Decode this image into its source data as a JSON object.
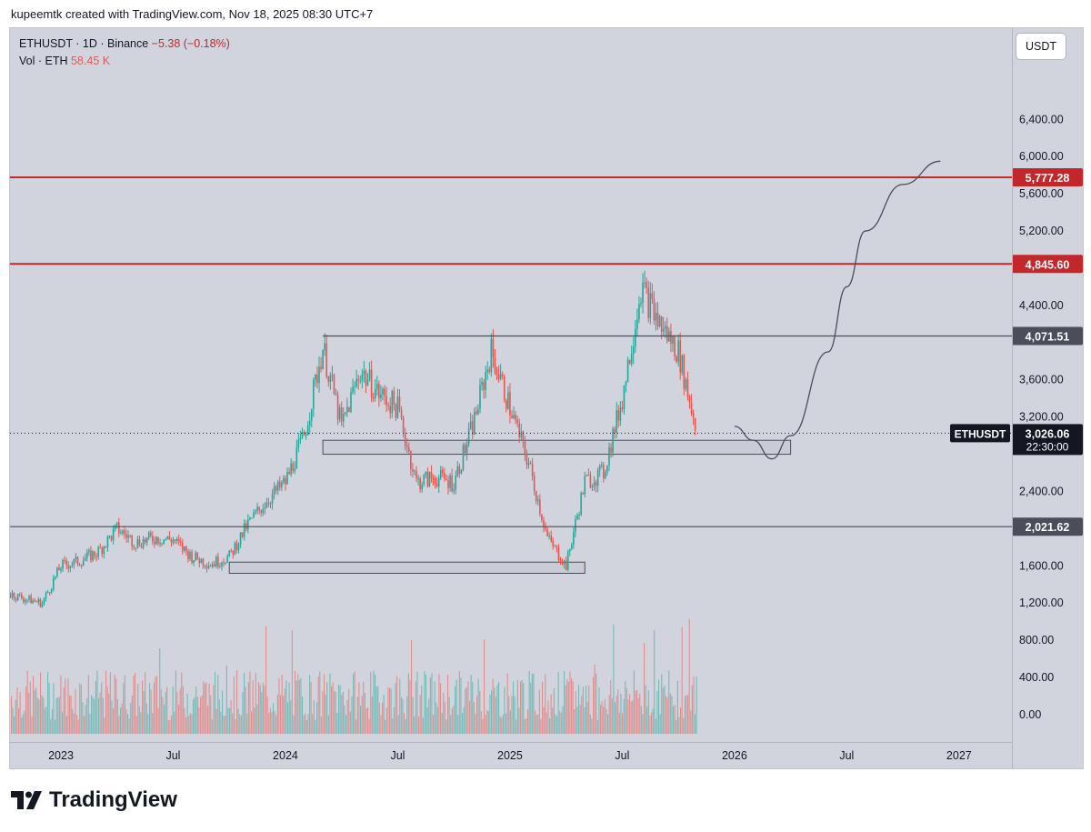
{
  "attribution": "kupeemtk created with TradingView.com, Nov 18, 2025 08:30 UTC+7",
  "legend": {
    "symbol_line": "ETHUSDT · 1D · Binance",
    "change": "−5.38 (−0.18%)",
    "vol_label": "Vol · ETH",
    "vol_value": "58.45 K"
  },
  "currency_button": "USDT",
  "brand": "TradingView",
  "colors": {
    "up": "#26a69a",
    "down": "#ef5350",
    "resistance": "#c2282b",
    "level_gray": "#4a4e5a",
    "zone_fill": "#c9ccd4",
    "background": "#d1d4dc"
  },
  "chart_data": {
    "type": "candlestick",
    "symbol": "ETHUSDT",
    "interval": "1D",
    "exchange": "Binance",
    "current_price": 3026.06,
    "current_price_label": "3,026.06",
    "countdown": "22:30:00",
    "price_axis_ticks": [
      "6,400.00",
      "6,000.00",
      "5,600.00",
      "5,200.00",
      "4,400.00",
      "3,600.00",
      "3,200.00",
      "2,400.00",
      "1,600.00",
      "1,200.00",
      "800.00",
      "400.00",
      "0.00"
    ],
    "time_axis_ticks": [
      "2023",
      "Jul",
      "2024",
      "Jul",
      "2025",
      "Jul",
      "2026",
      "Jul",
      "2027"
    ],
    "horizontal_levels": [
      {
        "price": 5777.28,
        "label": "5,777.28",
        "style": "resistance"
      },
      {
        "price": 4845.6,
        "label": "4,845.60",
        "style": "resistance"
      },
      {
        "price": 4071.51,
        "label": "4,071.51",
        "style": "level"
      },
      {
        "price": 2021.62,
        "label": "2,021.62",
        "style": "level"
      }
    ],
    "zones": [
      {
        "from": "2024-03",
        "to": "2026-04",
        "low": 2800,
        "high": 2950
      },
      {
        "from": "2023-10",
        "to": "2025-05",
        "low": 1520,
        "high": 1640
      }
    ],
    "price_path": [
      [
        "2022-10",
        1320
      ],
      [
        "2022-11",
        1250
      ],
      [
        "2022-12",
        1200
      ],
      [
        "2023-01",
        1600
      ],
      [
        "2023-02",
        1650
      ],
      [
        "2023-03",
        1750
      ],
      [
        "2023-04",
        2000
      ],
      [
        "2023-05",
        1850
      ],
      [
        "2023-06",
        1900
      ],
      [
        "2023-07",
        1880
      ],
      [
        "2023-08",
        1700
      ],
      [
        "2023-09",
        1620
      ],
      [
        "2023-10",
        1700
      ],
      [
        "2023-11",
        2050
      ],
      [
        "2023-12",
        2300
      ],
      [
        "2024-01",
        2500
      ],
      [
        "2024-02",
        3000
      ],
      [
        "2024-03",
        3950
      ],
      [
        "2024-04",
        3100
      ],
      [
        "2024-05",
        3700
      ],
      [
        "2024-06",
        3450
      ],
      [
        "2024-07",
        3300
      ],
      [
        "2024-08",
        2500
      ],
      [
        "2024-09",
        2550
      ],
      [
        "2024-10",
        2500
      ],
      [
        "2024-11",
        3100
      ],
      [
        "2024-12",
        3900
      ],
      [
        "2025-01",
        3300
      ],
      [
        "2025-02",
        2700
      ],
      [
        "2025-03",
        1900
      ],
      [
        "2025-04",
        1600
      ],
      [
        "2025-05",
        2500
      ],
      [
        "2025-06",
        2600
      ],
      [
        "2025-07",
        3400
      ],
      [
        "2025-08",
        4600
      ],
      [
        "2025-09",
        4200
      ],
      [
        "2025-10",
        3900
      ],
      [
        "2025-11",
        3026
      ]
    ],
    "projection_path": [
      [
        "2026-01",
        3100
      ],
      [
        "2026-02",
        2950
      ],
      [
        "2026-03",
        2750
      ],
      [
        "2026-04",
        3000
      ],
      [
        "2026-06",
        3900
      ],
      [
        "2026-07",
        4600
      ],
      [
        "2026-08",
        5200
      ],
      [
        "2026-10",
        5700
      ],
      [
        "2026-12",
        5950
      ]
    ]
  }
}
